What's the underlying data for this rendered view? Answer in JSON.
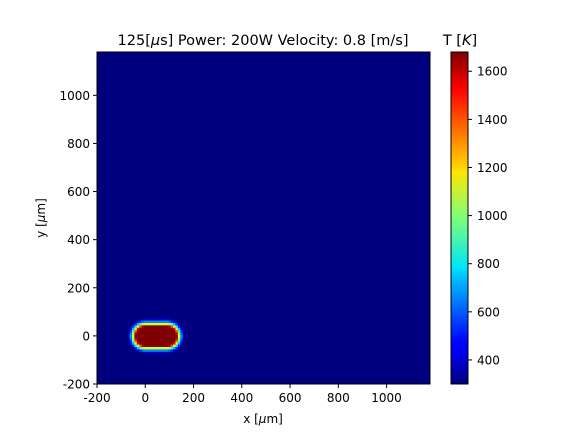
{
  "chart_data": {
    "type": "heatmap",
    "title_prefix": "125[",
    "title_mu": "μ",
    "title_suffix": "s] Power: 200W Velocity: 0.8 [m/s]",
    "xlabel_prefix": "x [",
    "xlabel_mu": "μ",
    "xlabel_suffix": "m]",
    "ylabel_prefix": "y [",
    "ylabel_mu": "μ",
    "ylabel_suffix": "m]",
    "xlim": [
      -200,
      1180
    ],
    "ylim": [
      -200,
      1180
    ],
    "xticks": [
      -200,
      0,
      200,
      400,
      600,
      800,
      1000
    ],
    "yticks": [
      -200,
      0,
      200,
      400,
      600,
      800,
      1000
    ],
    "xtick_labels": [
      "-200",
      "0",
      "200",
      "400",
      "600",
      "800",
      "1000"
    ],
    "ytick_labels": [
      "-200",
      "0",
      "200",
      "400",
      "600",
      "800",
      "1000"
    ],
    "grid": false,
    "colormap": "jet",
    "colorbar": {
      "label_prefix": "T [",
      "label_italic": "K",
      "label_suffix": "]",
      "vmin": 300,
      "vmax": 1680,
      "ticks": [
        400,
        600,
        800,
        1000,
        1200,
        1400,
        1600
      ],
      "tick_labels": [
        "400",
        "600",
        "800",
        "1000",
        "1200",
        "1400",
        "1600"
      ]
    },
    "background_value": 300,
    "melt_pool": {
      "core_x_range": [
        0,
        90
      ],
      "core_y_range": [
        -40,
        40
      ],
      "peak_value": 1680,
      "halo_width": 35
    }
  }
}
